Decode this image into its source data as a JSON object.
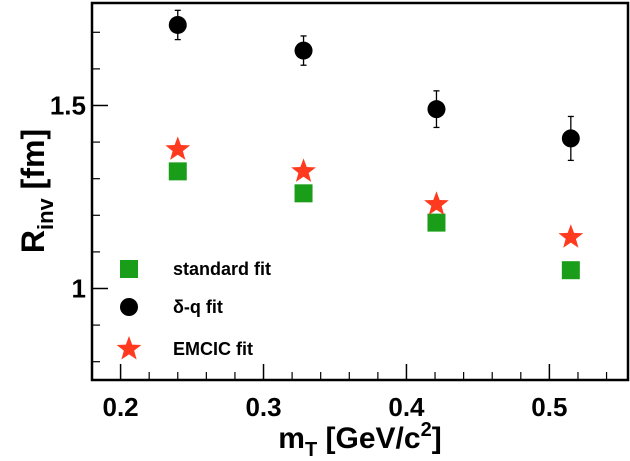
{
  "chart_data": {
    "type": "scatter",
    "xlabel": {
      "main": "m",
      "sub": "T",
      "rest": " [GeV/c",
      "sup": "2",
      "close": "]"
    },
    "ylabel": {
      "main": "R",
      "sub": "inv",
      "rest": " [fm]"
    },
    "xlim": [
      0.18,
      0.555
    ],
    "ylim": [
      0.75,
      1.78
    ],
    "x_ticks": [
      {
        "value": 0.2,
        "label": "0.2"
      },
      {
        "value": 0.3,
        "label": "0.3"
      },
      {
        "value": 0.4,
        "label": "0.4"
      },
      {
        "value": 0.5,
        "label": "0.5"
      }
    ],
    "y_ticks": [
      {
        "value": 1.0,
        "label": "1"
      },
      {
        "value": 1.5,
        "label": "1.5"
      }
    ],
    "grid": false,
    "legend_position": "bottom-left",
    "series": [
      {
        "name": "standard fit",
        "marker": "square",
        "color": "#1a9e1a",
        "points": [
          {
            "x": 0.24,
            "y": 1.32
          },
          {
            "x": 0.328,
            "y": 1.26
          },
          {
            "x": 0.421,
            "y": 1.18
          },
          {
            "x": 0.515,
            "y": 1.05
          }
        ]
      },
      {
        "name": "δ-q fit",
        "marker": "circle",
        "color": "#000000",
        "points": [
          {
            "x": 0.24,
            "y": 1.72,
            "err": 0.04
          },
          {
            "x": 0.328,
            "y": 1.65,
            "err": 0.04
          },
          {
            "x": 0.421,
            "y": 1.49,
            "err": 0.05
          },
          {
            "x": 0.515,
            "y": 1.41,
            "err": 0.06
          }
        ]
      },
      {
        "name": "EMCIC fit",
        "marker": "star",
        "color": "#ff3a1f",
        "points": [
          {
            "x": 0.24,
            "y": 1.38
          },
          {
            "x": 0.328,
            "y": 1.32
          },
          {
            "x": 0.421,
            "y": 1.23
          },
          {
            "x": 0.515,
            "y": 1.14
          }
        ]
      }
    ]
  }
}
